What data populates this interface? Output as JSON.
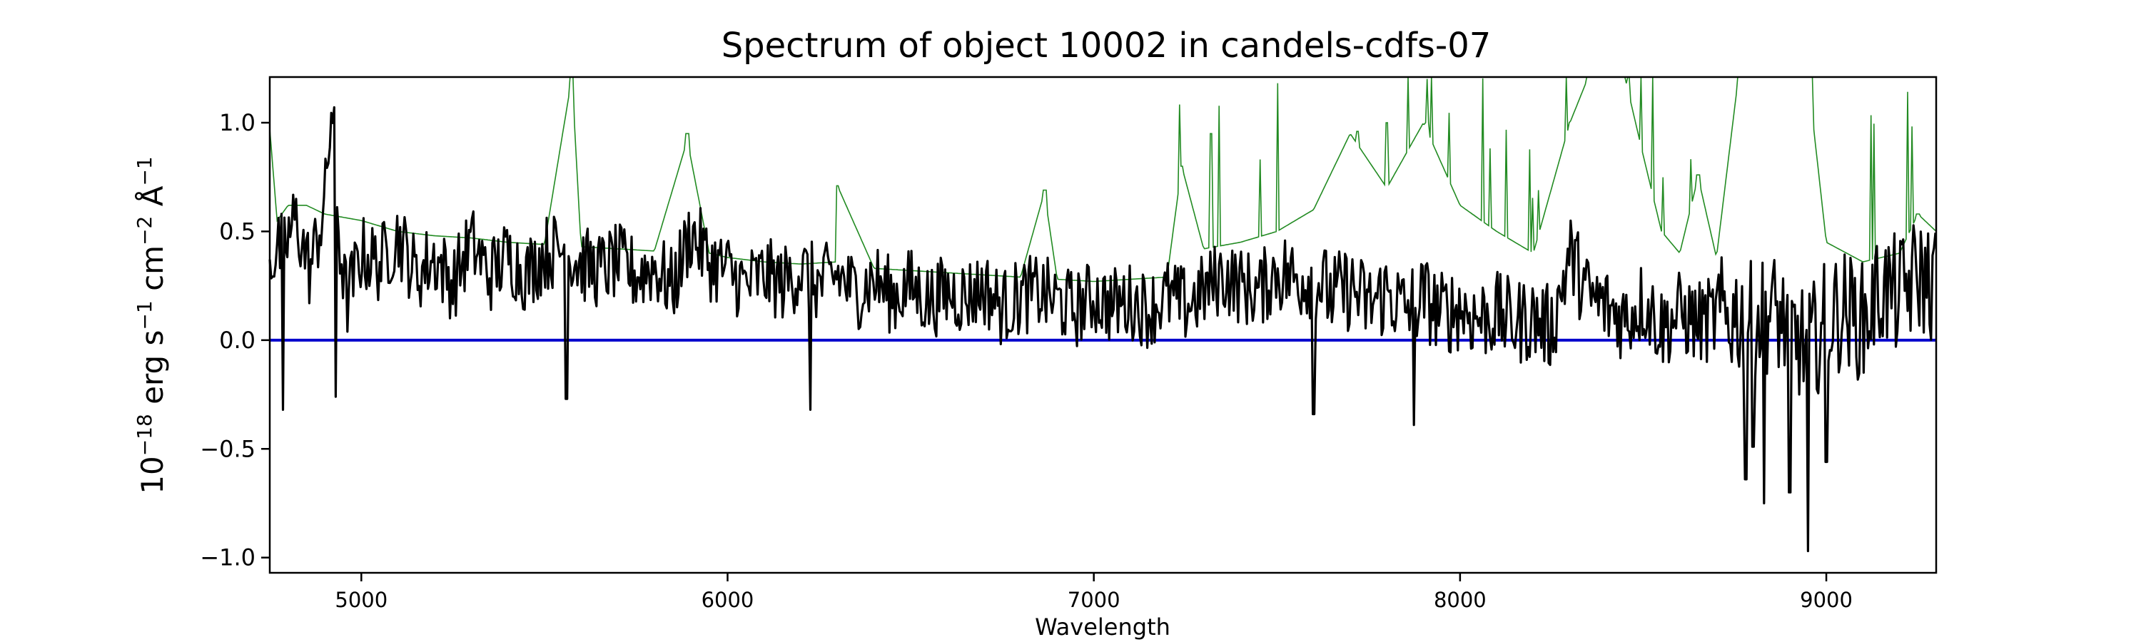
{
  "chart_data": {
    "type": "line",
    "title": "Spectrum of object 10002 in candels-cdfs-07",
    "xlabel": "Wavelength",
    "ylabel": "10^-18 erg s^-1 cm^-2 Å^-1",
    "ylabel_parts": {
      "base": "10",
      "exp1": "−18",
      "t1": " erg s",
      "exp2": "−1",
      "t2": " cm",
      "exp3": "−2",
      "t3": " Å",
      "exp4": "−1"
    },
    "xlim": [
      4750,
      9300
    ],
    "ylim": [
      -1.07,
      1.21
    ],
    "xticks": [
      5000,
      6000,
      7000,
      8000,
      9000
    ],
    "xtick_labels": [
      "5000",
      "6000",
      "7000",
      "8000",
      "9000"
    ],
    "yticks": [
      1.0,
      0.5,
      0.0,
      -0.5,
      -1.0
    ],
    "ytick_labels": [
      "1.0",
      "0.5",
      "0.0",
      "−0.5",
      "−1.0"
    ],
    "grid": false,
    "series": [
      {
        "role": "flux",
        "color": "#000000",
        "points": [
          [
            4750,
            0.38
          ],
          [
            4790,
            0.42
          ],
          [
            4820,
            0.56
          ],
          [
            4860,
            0.32
          ],
          [
            4900,
            0.62
          ],
          [
            4920,
            1.1
          ],
          [
            4940,
            0.45
          ],
          [
            4960,
            0.18
          ],
          [
            5000,
            0.4
          ],
          [
            5050,
            0.35
          ],
          [
            5100,
            0.48
          ],
          [
            5150,
            0.3
          ],
          [
            5200,
            0.38
          ],
          [
            5250,
            0.26
          ],
          [
            5300,
            0.45
          ],
          [
            5350,
            0.3
          ],
          [
            5400,
            0.39
          ],
          [
            5450,
            0.3
          ],
          [
            5500,
            0.4
          ],
          [
            5550,
            0.42
          ],
          [
            5600,
            0.35
          ],
          [
            5650,
            0.32
          ],
          [
            5700,
            0.36
          ],
          [
            5750,
            0.3
          ],
          [
            5800,
            0.34
          ],
          [
            5850,
            0.24
          ],
          [
            5900,
            0.5
          ],
          [
            5950,
            0.36
          ],
          [
            6000,
            0.32
          ],
          [
            6050,
            0.25
          ],
          [
            6100,
            0.3
          ],
          [
            6150,
            0.26
          ],
          [
            6200,
            0.32
          ],
          [
            6250,
            0.25
          ],
          [
            6300,
            0.3
          ],
          [
            6350,
            0.22
          ],
          [
            6400,
            0.28
          ],
          [
            6450,
            0.2
          ],
          [
            6500,
            0.25
          ],
          [
            6550,
            0.18
          ],
          [
            6600,
            0.22
          ],
          [
            6650,
            0.2
          ],
          [
            6700,
            0.24
          ],
          [
            6750,
            0.15
          ],
          [
            6800,
            0.2
          ],
          [
            6850,
            0.22
          ],
          [
            6900,
            0.18
          ],
          [
            6950,
            0.14
          ],
          [
            7000,
            0.2
          ],
          [
            7050,
            0.16
          ],
          [
            7100,
            0.18
          ],
          [
            7150,
            0.14
          ],
          [
            7200,
            0.2
          ],
          [
            7250,
            0.16
          ],
          [
            7300,
            0.22
          ],
          [
            7350,
            0.3
          ],
          [
            7400,
            0.25
          ],
          [
            7450,
            0.22
          ],
          [
            7500,
            0.32
          ],
          [
            7550,
            0.28
          ],
          [
            7600,
            0.3
          ],
          [
            7650,
            0.2
          ],
          [
            7700,
            0.24
          ],
          [
            7750,
            0.16
          ],
          [
            7800,
            0.22
          ],
          [
            7850,
            0.14
          ],
          [
            7900,
            0.2
          ],
          [
            7950,
            0.12
          ],
          [
            8000,
            0.15
          ],
          [
            8050,
            0.1
          ],
          [
            8100,
            0.12
          ],
          [
            8150,
            0.08
          ],
          [
            8200,
            0.1
          ],
          [
            8250,
            0.05
          ],
          [
            8300,
            0.4
          ],
          [
            8350,
            0.2
          ],
          [
            8400,
            0.15
          ],
          [
            8450,
            0.1
          ],
          [
            8500,
            0.18
          ],
          [
            8550,
            0.06
          ],
          [
            8600,
            0.12
          ],
          [
            8650,
            0.08
          ],
          [
            8700,
            0.1
          ],
          [
            8750,
            0.12
          ],
          [
            8800,
            0.08
          ],
          [
            8850,
            0.14
          ],
          [
            8900,
            0.05
          ],
          [
            8950,
            -0.05
          ],
          [
            9000,
            0.1
          ],
          [
            9050,
            0.14
          ],
          [
            9100,
            0.08
          ],
          [
            9150,
            0.24
          ],
          [
            9200,
            0.2
          ],
          [
            9250,
            0.3
          ],
          [
            9300,
            0.25
          ]
        ],
        "notable_dips": [
          [
            4785,
            -0.32
          ],
          [
            4930,
            -0.26
          ],
          [
            5560,
            -0.27
          ],
          [
            6225,
            -0.32
          ],
          [
            7600,
            -0.34
          ],
          [
            7875,
            -0.39
          ],
          [
            8780,
            -0.64
          ],
          [
            8800,
            -0.49
          ],
          [
            8830,
            -0.75
          ],
          [
            8900,
            -0.7
          ],
          [
            8950,
            -0.97
          ],
          [
            9000,
            -0.56
          ]
        ]
      },
      {
        "role": "error",
        "color": "#228B22",
        "points": [
          [
            4750,
            0.97
          ],
          [
            4770,
            0.55
          ],
          [
            4800,
            0.62
          ],
          [
            4850,
            0.62
          ],
          [
            4900,
            0.58
          ],
          [
            5000,
            0.55
          ],
          [
            5100,
            0.5
          ],
          [
            5200,
            0.48
          ],
          [
            5300,
            0.47
          ],
          [
            5400,
            0.45
          ],
          [
            5500,
            0.44
          ],
          [
            5575,
            1.21
          ],
          [
            5600,
            0.43
          ],
          [
            5700,
            0.42
          ],
          [
            5800,
            0.41
          ],
          [
            5890,
            0.92
          ],
          [
            5950,
            0.4
          ],
          [
            6000,
            0.38
          ],
          [
            6100,
            0.36
          ],
          [
            6200,
            0.35
          ],
          [
            6300,
            0.36
          ],
          [
            6300,
            0.71
          ],
          [
            6400,
            0.33
          ],
          [
            6500,
            0.32
          ],
          [
            6600,
            0.31
          ],
          [
            6700,
            0.3
          ],
          [
            6800,
            0.29
          ],
          [
            6865,
            0.68
          ],
          [
            6900,
            0.28
          ],
          [
            7000,
            0.27
          ],
          [
            7100,
            0.28
          ],
          [
            7200,
            0.29
          ],
          [
            7240,
            0.8
          ],
          [
            7300,
            0.42
          ],
          [
            7400,
            0.45
          ],
          [
            7500,
            0.5
          ],
          [
            7600,
            0.6
          ],
          [
            7700,
            0.95
          ],
          [
            7800,
            0.7
          ],
          [
            7900,
            1.0
          ],
          [
            8000,
            0.62
          ],
          [
            8100,
            0.5
          ],
          [
            8200,
            0.4
          ],
          [
            8300,
            1.0
          ],
          [
            8350,
            1.21
          ],
          [
            8400,
            1.21
          ],
          [
            8450,
            1.21
          ],
          [
            8500,
            0.85
          ],
          [
            8550,
            0.5
          ],
          [
            8600,
            0.4
          ],
          [
            8650,
            0.75
          ],
          [
            8700,
            0.38
          ],
          [
            8760,
            1.21
          ],
          [
            8800,
            1.21
          ],
          [
            8850,
            1.21
          ],
          [
            8900,
            1.21
          ],
          [
            8950,
            1.21
          ],
          [
            9000,
            0.45
          ],
          [
            9100,
            0.36
          ],
          [
            9200,
            0.4
          ],
          [
            9250,
            0.58
          ],
          [
            9300,
            0.5
          ]
        ],
        "emission_spikes": [
          [
            5575,
            1.21
          ],
          [
            5890,
            0.95
          ],
          [
            6300,
            0.71
          ],
          [
            6865,
            0.69
          ],
          [
            7240,
            0.8
          ],
          [
            7320,
            0.95
          ],
          [
            7720,
            0.96
          ],
          [
            7800,
            1.0
          ],
          [
            7910,
            1.0
          ],
          [
            8300,
            1.0
          ],
          [
            8350,
            1.21
          ],
          [
            8420,
            1.21
          ],
          [
            8460,
            1.21
          ],
          [
            8650,
            0.76
          ],
          [
            8760,
            1.21
          ],
          [
            8790,
            1.21
          ],
          [
            8830,
            1.21
          ],
          [
            8880,
            1.21
          ],
          [
            8930,
            1.21
          ],
          [
            8960,
            1.21
          ],
          [
            9250,
            0.58
          ]
        ]
      },
      {
        "role": "zero",
        "color": "#0000CC",
        "points": [
          [
            4750,
            0.0
          ],
          [
            9300,
            0.0
          ]
        ]
      }
    ]
  }
}
